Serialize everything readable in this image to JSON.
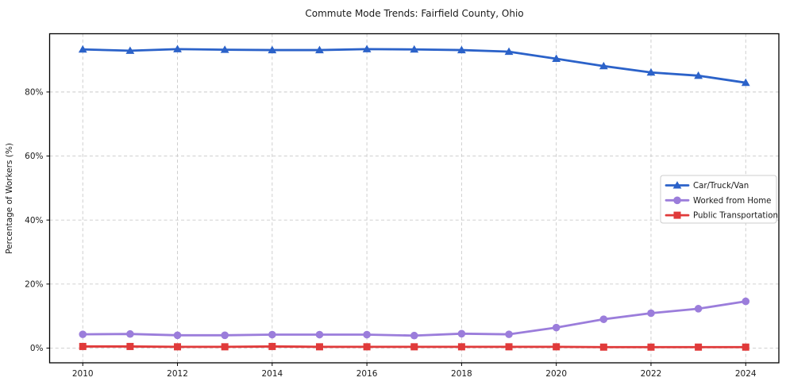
{
  "chart_data": {
    "type": "line",
    "title": "Commute Mode Trends: Fairfield County, Ohio",
    "xlabel": "",
    "ylabel": "Percentage of Workers (%)",
    "x": [
      2010,
      2011,
      2012,
      2013,
      2014,
      2015,
      2016,
      2017,
      2018,
      2019,
      2020,
      2021,
      2022,
      2023,
      2024
    ],
    "series": [
      {
        "name": "Car/Truck/Van",
        "color": "#2b62c9",
        "marker": "triangle",
        "values": [
          93.3,
          92.9,
          93.4,
          93.2,
          93.1,
          93.1,
          93.4,
          93.3,
          93.1,
          92.6,
          90.4,
          88.1,
          86.1,
          85.1,
          82.9
        ]
      },
      {
        "name": "Worked from Home",
        "color": "#9b7ddb",
        "marker": "circle",
        "values": [
          4.3,
          4.4,
          4.0,
          4.0,
          4.2,
          4.2,
          4.2,
          3.9,
          4.5,
          4.3,
          6.4,
          9.0,
          10.9,
          12.3,
          14.6
        ]
      },
      {
        "name": "Public Transportation",
        "color": "#e03a3a",
        "marker": "square",
        "values": [
          0.5,
          0.5,
          0.4,
          0.4,
          0.5,
          0.4,
          0.4,
          0.4,
          0.4,
          0.4,
          0.4,
          0.3,
          0.3,
          0.3,
          0.3
        ]
      }
    ],
    "xticks": [
      2010,
      2012,
      2014,
      2016,
      2018,
      2020,
      2022,
      2024
    ],
    "xtick_labels": [
      "2010",
      "2012",
      "2014",
      "2016",
      "2018",
      "2020",
      "2022",
      "2024"
    ],
    "yticks": [
      0,
      20,
      40,
      60,
      80
    ],
    "ytick_labels": [
      "0%",
      "20%",
      "40%",
      "60%",
      "80%"
    ],
    "xlim": [
      2009.3,
      2024.7
    ],
    "ylim": [
      -4.6,
      98.2
    ],
    "grid": "dashed",
    "grid_color": "#c9c9c9",
    "frame_color": "#000000",
    "background_color": "#ffffff",
    "legend_position": "middle-right"
  }
}
